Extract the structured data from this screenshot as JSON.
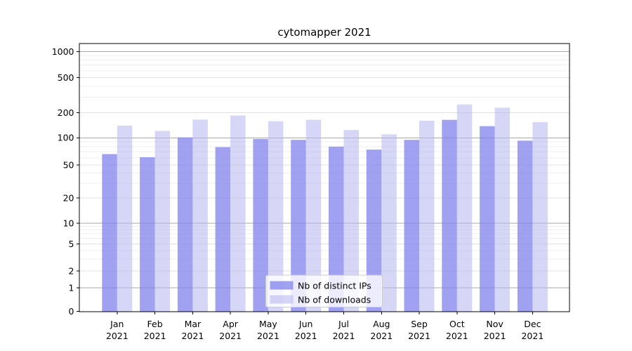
{
  "title": "cytomapper 2021",
  "chart_data": {
    "type": "bar",
    "title": "cytomapper 2021",
    "categories": [
      "Jan",
      "Feb",
      "Mar",
      "Apr",
      "May",
      "Jun",
      "Jul",
      "Aug",
      "Sep",
      "Oct",
      "Nov",
      "Dec"
    ],
    "category_year": "2021",
    "series": [
      {
        "name": "Nb of distinct IPs",
        "color": "#8282ec",
        "fill_opacity": 0.75,
        "values": [
          66,
          61,
          101,
          79,
          97,
          95,
          80,
          74,
          95,
          164,
          138,
          93
        ]
      },
      {
        "name": "Nb of downloads",
        "color": "#b4b4f0",
        "fill_opacity": 0.55,
        "values": [
          140,
          121,
          165,
          185,
          158,
          164,
          124,
          110,
          160,
          248,
          228,
          154
        ]
      }
    ],
    "y_axis": {
      "scale": "log",
      "ticks": [
        0,
        1,
        2,
        5,
        10,
        20,
        50,
        100,
        200,
        500,
        1000
      ],
      "ylim": [
        0,
        1000
      ]
    },
    "x_axis": {
      "label": ""
    },
    "legend": {
      "position": "lower center",
      "entries": [
        "Nb of distinct IPs",
        "Nb of downloads"
      ]
    },
    "grid": true,
    "colors": {
      "grid_major": "#a9a9a9",
      "grid_labeled": "#e1e1e1",
      "grid_minor": "#efefef",
      "axis": "#000000",
      "legend_border": "#cccccc",
      "background": "#ffffff"
    }
  }
}
